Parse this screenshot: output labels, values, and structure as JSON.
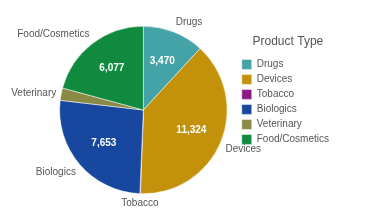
{
  "chart_data": {
    "type": "pie",
    "categories": [
      "Drugs",
      "Devices",
      "Tobacco",
      "Biologics",
      "Veterinary",
      "Food/Cosmetics"
    ],
    "values": [
      3470,
      11324,
      30,
      7653,
      700,
      6077
    ],
    "value_labels": [
      "3,470",
      "11,324",
      null,
      "7,653",
      null,
      "6,077"
    ],
    "colors": [
      "#44a3a6",
      "#c4920a",
      "#8b1a89",
      "#17479e",
      "#8a8a47",
      "#0f8a3f"
    ],
    "data_labels": true,
    "legend": "right",
    "legend_title": "Product Type"
  }
}
